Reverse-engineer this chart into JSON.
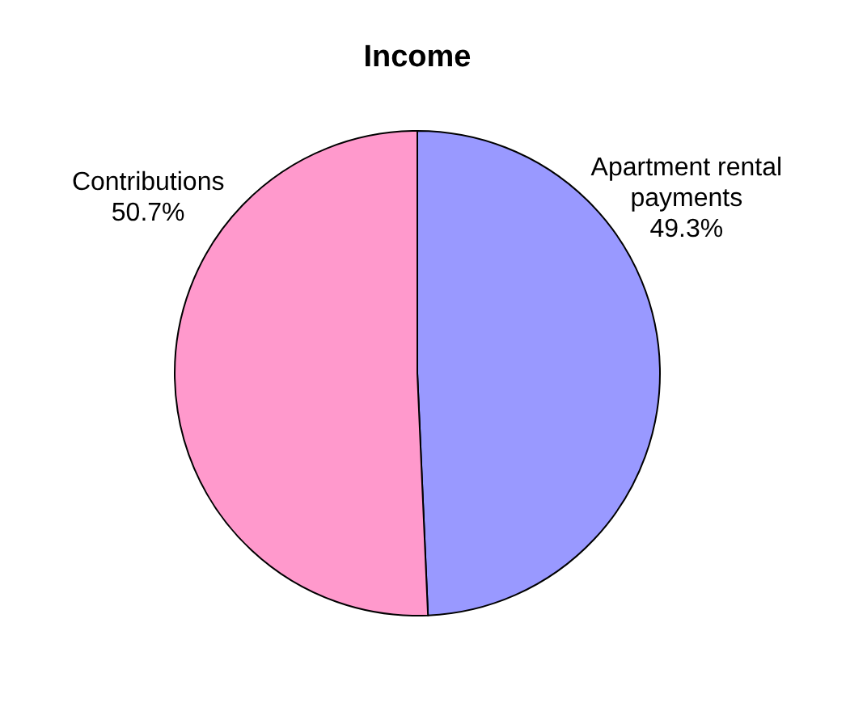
{
  "chart_data": {
    "type": "pie",
    "title": "Income",
    "categories": [
      "Apartment rental payments",
      "Contributions"
    ],
    "values": [
      49.3,
      50.7
    ],
    "colors": [
      "#9999ff",
      "#ff99cc"
    ],
    "value_labels": [
      "49.3%",
      "50.7%"
    ]
  }
}
